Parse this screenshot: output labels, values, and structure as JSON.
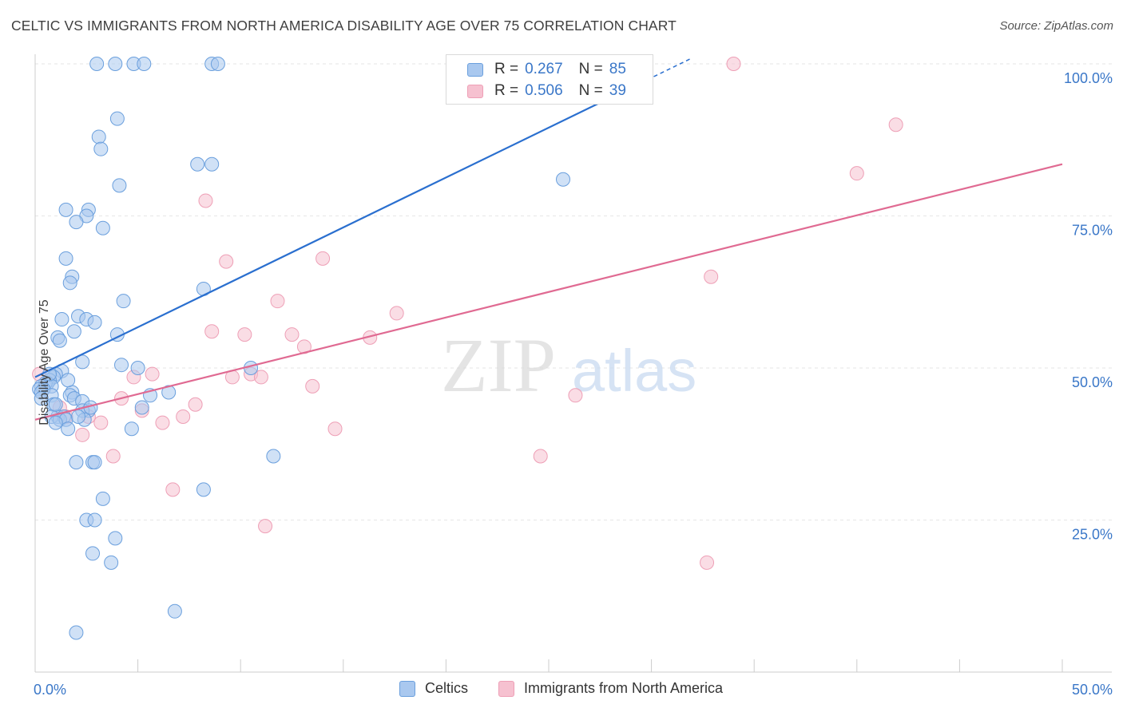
{
  "header": {
    "title": "CELTIC VS IMMIGRANTS FROM NORTH AMERICA DISABILITY AGE OVER 75 CORRELATION CHART",
    "source": "Source: ZipAtlas.com"
  },
  "legend": {
    "r_label": "R = ",
    "n_label": "N = ",
    "series": [
      {
        "name": "Celtics",
        "r": "0.267",
        "n": "85"
      },
      {
        "name": "Immigrants from North America",
        "r": "0.506",
        "n": "39"
      }
    ]
  },
  "watermark": {
    "zip": "ZIP",
    "atlas": "atlas"
  },
  "colors": {
    "celtics_fill": "#a9c8ef",
    "celtics_stroke": "#6a9fdd",
    "celtics_line": "#2a6fcf",
    "immig_fill": "#f6c1d0",
    "immig_stroke": "#ee9fb6",
    "immig_line": "#e06a92",
    "tick_label": "#3a77c8",
    "grid": "#e6e6e6"
  },
  "chart_data": {
    "type": "scatter",
    "title": "CELTIC VS IMMIGRANTS FROM NORTH AMERICA DISABILITY AGE OVER 75 CORRELATION CHART",
    "xlabel": "",
    "ylabel": "Disability Age Over 75",
    "xlim": [
      0,
      50
    ],
    "ylim": [
      0,
      102
    ],
    "x_tick_labels": [
      {
        "value": 0,
        "label": "0.0%"
      },
      {
        "value": 50,
        "label": "50.0%"
      }
    ],
    "y_tick_labels": [
      {
        "value": 25,
        "label": "25.0%"
      },
      {
        "value": 50,
        "label": "50.0%"
      },
      {
        "value": 75,
        "label": "75.0%"
      },
      {
        "value": 100,
        "label": "100.0%"
      }
    ],
    "series": [
      {
        "name": "Celtics",
        "r": 0.267,
        "n": 85,
        "trend": {
          "x": [
            0,
            32
          ],
          "y": [
            48.5,
            101
          ],
          "dashed_from_x": 29.8
        },
        "points": [
          [
            3.0,
            100
          ],
          [
            3.9,
            100
          ],
          [
            4.8,
            100
          ],
          [
            5.3,
            100
          ],
          [
            8.6,
            100
          ],
          [
            8.9,
            100
          ],
          [
            4.0,
            91
          ],
          [
            3.1,
            88
          ],
          [
            3.2,
            86
          ],
          [
            4.1,
            80
          ],
          [
            7.9,
            83.5
          ],
          [
            8.6,
            83.5
          ],
          [
            25.7,
            81
          ],
          [
            1.5,
            76
          ],
          [
            2.6,
            76
          ],
          [
            2.5,
            75
          ],
          [
            2.0,
            74
          ],
          [
            3.3,
            73
          ],
          [
            1.5,
            68
          ],
          [
            1.8,
            65
          ],
          [
            1.7,
            64
          ],
          [
            8.2,
            63
          ],
          [
            4.3,
            61
          ],
          [
            2.1,
            58.5
          ],
          [
            2.5,
            58
          ],
          [
            1.3,
            58
          ],
          [
            2.9,
            57.5
          ],
          [
            1.9,
            56
          ],
          [
            4.0,
            55.5
          ],
          [
            1.1,
            55
          ],
          [
            1.2,
            54.5
          ],
          [
            2.3,
            51
          ],
          [
            4.2,
            50.5
          ],
          [
            5.0,
            50
          ],
          [
            10.5,
            50
          ],
          [
            1.3,
            49.5
          ],
          [
            1.0,
            49
          ],
          [
            0.9,
            48.5
          ],
          [
            0.7,
            48
          ],
          [
            0.6,
            47.5
          ],
          [
            0.5,
            47.5
          ],
          [
            0.3,
            47
          ],
          [
            0.8,
            47
          ],
          [
            0.4,
            46.5
          ],
          [
            0.2,
            46.5
          ],
          [
            0.3,
            46
          ],
          [
            1.8,
            46
          ],
          [
            6.5,
            46
          ],
          [
            0.8,
            45.5
          ],
          [
            1.7,
            45.5
          ],
          [
            5.6,
            45.5
          ],
          [
            0.3,
            45
          ],
          [
            1.9,
            45
          ],
          [
            2.3,
            44.5
          ],
          [
            0.9,
            44
          ],
          [
            5.2,
            43.5
          ],
          [
            2.6,
            43
          ],
          [
            2.3,
            43
          ],
          [
            1.1,
            42
          ],
          [
            1.4,
            42
          ],
          [
            0.8,
            42
          ],
          [
            1.2,
            41.5
          ],
          [
            1.5,
            41.5
          ],
          [
            2.4,
            41.5
          ],
          [
            1.0,
            41
          ],
          [
            4.7,
            40
          ],
          [
            1.6,
            40
          ],
          [
            2.7,
            43.5
          ],
          [
            2.1,
            42
          ],
          [
            1.0,
            44
          ],
          [
            2.8,
            34.5
          ],
          [
            2.9,
            34.5
          ],
          [
            2.0,
            34.5
          ],
          [
            11.6,
            35.5
          ],
          [
            3.3,
            28.5
          ],
          [
            8.2,
            30
          ],
          [
            2.5,
            25
          ],
          [
            2.9,
            25
          ],
          [
            3.9,
            22
          ],
          [
            2.8,
            19.5
          ],
          [
            3.7,
            18
          ],
          [
            6.8,
            10
          ],
          [
            2.0,
            6.5
          ],
          [
            1.6,
            48
          ],
          [
            0.7,
            49
          ]
        ]
      },
      {
        "name": "Immigrants from North America",
        "r": 0.506,
        "n": 39,
        "trend": {
          "x": [
            0,
            50
          ],
          "y": [
            41.5,
            83.5
          ]
        },
        "points": [
          [
            20.6,
            100
          ],
          [
            34.0,
            100
          ],
          [
            41.9,
            90
          ],
          [
            40.0,
            82
          ],
          [
            8.3,
            77.5
          ],
          [
            9.3,
            67.5
          ],
          [
            14.0,
            68
          ],
          [
            32.9,
            65
          ],
          [
            11.8,
            61
          ],
          [
            17.6,
            59
          ],
          [
            8.6,
            56
          ],
          [
            10.2,
            55.5
          ],
          [
            12.5,
            55.5
          ],
          [
            16.3,
            55
          ],
          [
            13.1,
            53.5
          ],
          [
            5.7,
            49
          ],
          [
            10.5,
            49
          ],
          [
            4.8,
            48.5
          ],
          [
            9.6,
            48.5
          ],
          [
            11.0,
            48.5
          ],
          [
            13.5,
            47
          ],
          [
            26.3,
            45.5
          ],
          [
            4.2,
            45
          ],
          [
            7.8,
            44
          ],
          [
            5.2,
            43
          ],
          [
            7.2,
            42
          ],
          [
            3.2,
            41
          ],
          [
            6.2,
            41
          ],
          [
            14.6,
            40
          ],
          [
            0.2,
            49
          ],
          [
            2.3,
            39
          ],
          [
            3.8,
            35.5
          ],
          [
            24.6,
            35.5
          ],
          [
            1.2,
            43.5
          ],
          [
            1.5,
            42
          ],
          [
            2.6,
            42
          ],
          [
            6.7,
            30
          ],
          [
            11.2,
            24
          ],
          [
            32.7,
            18
          ]
        ]
      }
    ]
  }
}
